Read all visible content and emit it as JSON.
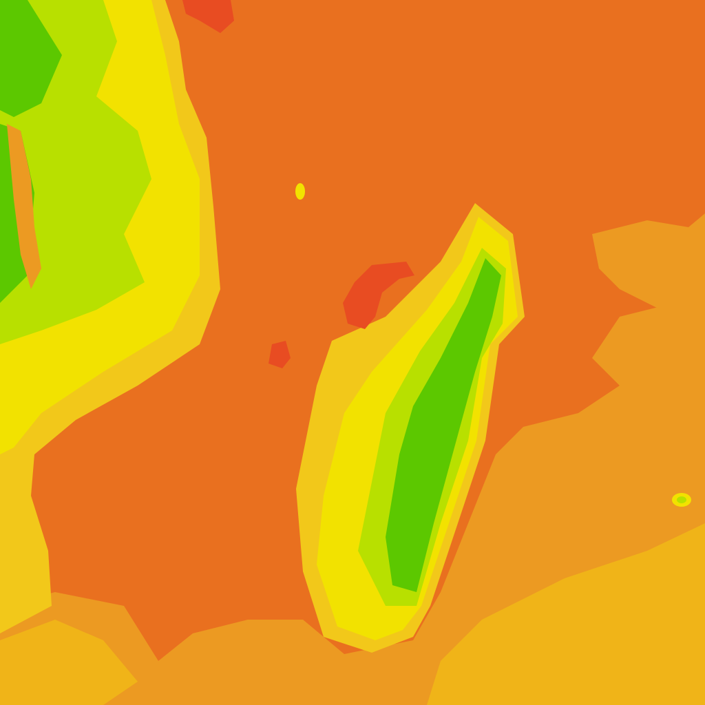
{
  "map": {
    "type": "heatmap-tile",
    "colors": {
      "base": "#E9701F",
      "ocean_light": "#EC9A22",
      "ocean_lighter": "#F0B418",
      "land_yellow": "#F2E200",
      "land_yellow_orange": "#F2C81A",
      "land_lime": "#B8E000",
      "land_green": "#5CC800",
      "hot_red": "#E84C22"
    }
  }
}
